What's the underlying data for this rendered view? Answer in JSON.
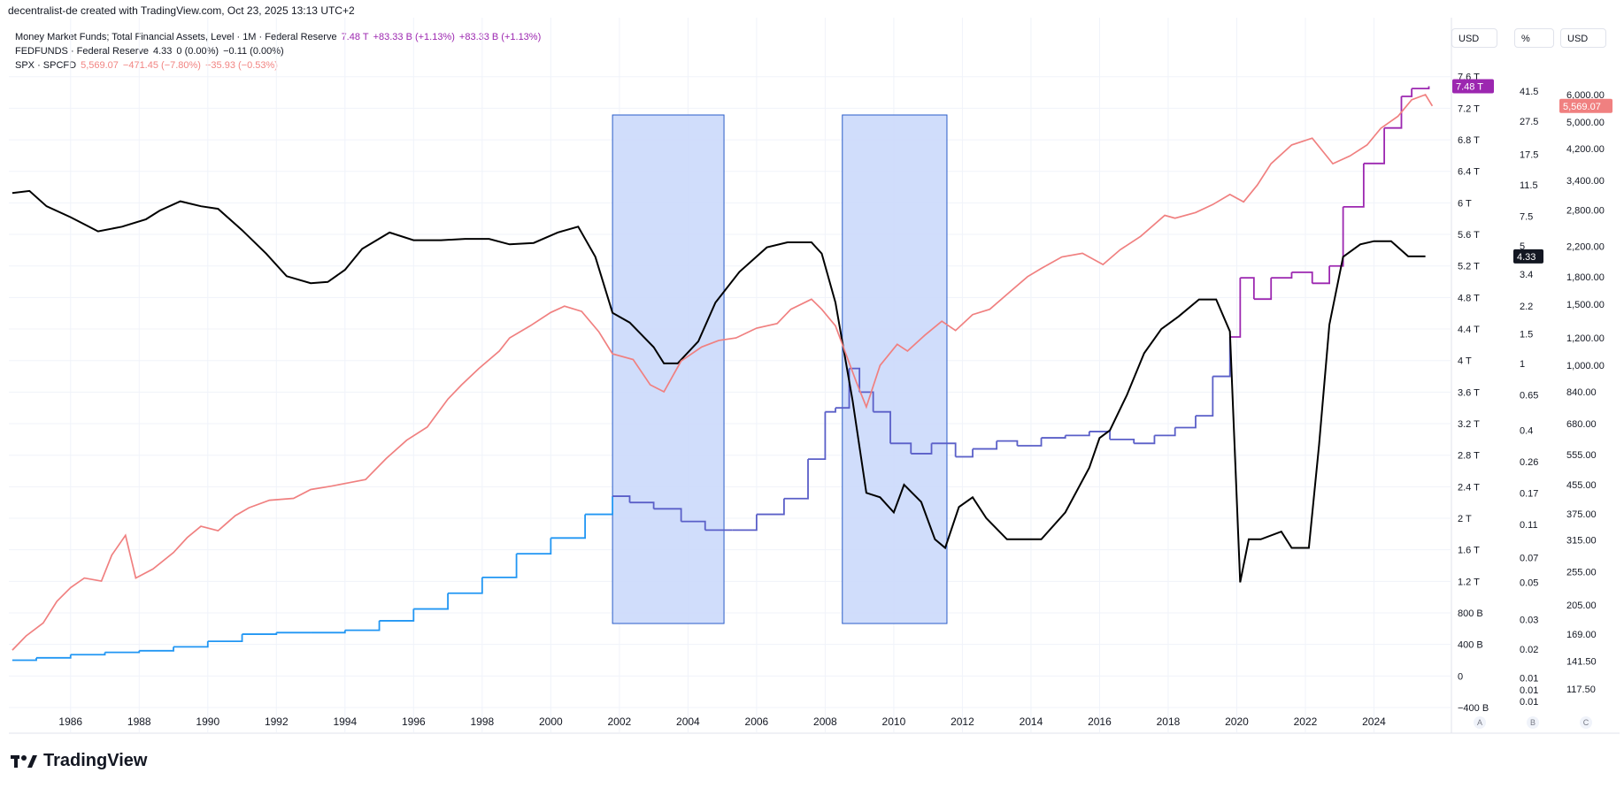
{
  "header": {
    "attribution": "decentralist-de created with TradingView.com, Oct 23, 2025 13:13 UTC+2"
  },
  "legend": [
    {
      "name": "Money Market Funds; Total Financial Assets, Level · 1M · Federal Reserve",
      "value": "7.48 T",
      "change": "+83.33 B (+1.13%)",
      "change2": "+83.33 B (+1.13%)",
      "color": "#9c27b0"
    },
    {
      "name": "FEDFUNDS · Federal Reserve",
      "value": "4.33",
      "change": "0 (0.00%)",
      "change2": "−0.11 (0.00%)",
      "color": "#131722"
    },
    {
      "name": "SPX · SPCFD",
      "value": "5,569.07",
      "change": "−471.45 (−7.80%)",
      "change2": "−35.93 (−0.53%)",
      "color": "#f28482"
    }
  ],
  "axis_headers": {
    "a": "USD",
    "b": "%",
    "c": "USD"
  },
  "axis_corner_labels": {
    "a": "A",
    "b": "B",
    "c": "C"
  },
  "brand": {
    "name": "TradingView",
    "logo": "tradingview-logo-icon"
  },
  "colors": {
    "mmf_early": "#2196f3",
    "mmf": "#5a5fc8",
    "mmf_late": "#9c27b0",
    "fedfunds": "#000000",
    "spx": "#f08080",
    "shade_fill": "#cbd9fb",
    "shade_stroke": "#2a5cc8"
  },
  "chart_data": {
    "type": "line",
    "x_range": [
      1984.2,
      2026.0
    ],
    "x_ticks": [
      1986,
      1988,
      1990,
      1992,
      1994,
      1996,
      1998,
      2000,
      2002,
      2004,
      2006,
      2008,
      2010,
      2012,
      2014,
      2016,
      2018,
      2020,
      2022,
      2024
    ],
    "grid": true,
    "axes": {
      "a": {
        "unit": "USD",
        "scale": "linear",
        "range": [
          -0.4,
          7.9
        ],
        "ticks": [
          "7.6 T",
          "7.2 T",
          "6.8 T",
          "6.4 T",
          "6 T",
          "5.6 T",
          "5.2 T",
          "4.8 T",
          "4.4 T",
          "4 T",
          "3.6 T",
          "3.2 T",
          "2.8 T",
          "2.4 T",
          "2 T",
          "1.6 T",
          "1.2 T",
          "800 B",
          "400 B",
          "0",
          "−400 B"
        ],
        "last_label": "7.48 T"
      },
      "b": {
        "unit": "%",
        "scale": "log",
        "ticks": [
          "41.5",
          "27.5",
          "17.5",
          "11.5",
          "7.5",
          "5",
          "3.4",
          "2.2",
          "1.5",
          "1",
          "0.65",
          "0.4",
          "0.26",
          "0.17",
          "0.11",
          "0.07",
          "0.05",
          "0.03",
          "0.02",
          "0.01",
          "0.01",
          "0.01"
        ],
        "last_label": "4.33"
      },
      "c": {
        "unit": "USD",
        "scale": "log",
        "ticks": [
          "6,000.00",
          "5,000.00",
          "4,200.00",
          "3,400.00",
          "2,800.00",
          "2,200.00",
          "1,800.00",
          "1,500.00",
          "1,200.00",
          "1,000.00",
          "840.00",
          "680.00",
          "555.00",
          "455.00",
          "375.00",
          "315.00",
          "255.00",
          "205.00",
          "169.00",
          "141.50",
          "117.50"
        ],
        "last_label": "5,569.07"
      }
    },
    "shaded_regions": [
      {
        "x": [
          2001.8,
          2005.05
        ]
      },
      {
        "x": [
          2008.5,
          2011.55
        ]
      }
    ],
    "series": [
      {
        "name": "Money Market Funds; Total Financial Assets, Level",
        "axis": "a",
        "step": true,
        "x": [
          1984.3,
          1985,
          1986,
          1987,
          1988,
          1989,
          1990,
          1991,
          1992,
          1993,
          1994,
          1995,
          1996,
          1997,
          1998,
          1999,
          2000,
          2001,
          2001.8,
          2002.3,
          2003,
          2003.8,
          2004.5,
          2005.3,
          2006,
          2006.8,
          2007.5,
          2008,
          2008.3,
          2008.7,
          2009,
          2009.4,
          2009.9,
          2010.5,
          2011.1,
          2011.8,
          2012.3,
          2013,
          2013.6,
          2014.3,
          2015,
          2015.7,
          2016.3,
          2017,
          2017.6,
          2018.2,
          2018.8,
          2019.3,
          2019.8,
          2020.1,
          2020.5,
          2021,
          2021.6,
          2022.2,
          2022.7,
          2023.1,
          2023.7,
          2024.3,
          2024.8,
          2025.1,
          2025.6
        ],
        "values": [
          0.2,
          0.23,
          0.27,
          0.3,
          0.32,
          0.37,
          0.44,
          0.53,
          0.55,
          0.55,
          0.58,
          0.7,
          0.85,
          1.05,
          1.25,
          1.55,
          1.75,
          2.05,
          2.28,
          2.2,
          2.12,
          1.96,
          1.85,
          1.85,
          2.05,
          2.25,
          2.75,
          3.35,
          3.4,
          3.9,
          3.6,
          3.35,
          2.95,
          2.82,
          2.95,
          2.78,
          2.88,
          2.98,
          2.92,
          3.02,
          3.05,
          3.1,
          3.0,
          2.95,
          3.05,
          3.15,
          3.3,
          3.8,
          4.3,
          5.05,
          4.78,
          5.05,
          5.12,
          4.98,
          5.2,
          5.95,
          6.5,
          6.95,
          7.35,
          7.45,
          7.48
        ]
      },
      {
        "name": "FEDFUNDS",
        "axis": "b",
        "x": [
          1984.3,
          1984.8,
          1985.3,
          1986,
          1986.8,
          1987.5,
          1988.2,
          1988.6,
          1989.2,
          1989.8,
          1990.3,
          1991,
          1991.7,
          1992.3,
          1993,
          1993.5,
          1994,
          1994.5,
          1995.3,
          1996,
          1996.8,
          1997.5,
          1998.2,
          1998.8,
          1999.5,
          2000.2,
          2000.8,
          2001.3,
          2001.8,
          2002.3,
          2003,
          2003.3,
          2003.7,
          2004.3,
          2004.8,
          2005.5,
          2006.3,
          2006.9,
          2007.6,
          2007.9,
          2008.3,
          2008.8,
          2009.2,
          2009.6,
          2010,
          2010.3,
          2010.8,
          2011.2,
          2011.5,
          2011.9,
          2012.3,
          2012.7,
          2013.3,
          2013.7,
          2014.3,
          2015,
          2015.7,
          2016,
          2016.3,
          2016.8,
          2017.3,
          2017.8,
          2018.3,
          2018.9,
          2019.4,
          2019.8,
          2020.1,
          2020.35,
          2020.7,
          2021.3,
          2021.6,
          2022.1,
          2022.4,
          2022.7,
          2023.1,
          2023.6,
          2024,
          2024.5,
          2025,
          2025.5
        ],
        "values": [
          10.3,
          10.6,
          8.6,
          7.4,
          6.1,
          6.5,
          7.2,
          8.1,
          9.2,
          8.6,
          8.3,
          6.2,
          4.5,
          3.3,
          3.0,
          3.05,
          3.6,
          4.8,
          6.0,
          5.4,
          5.4,
          5.5,
          5.5,
          5.1,
          5.2,
          6.0,
          6.5,
          4.3,
          2.0,
          1.75,
          1.25,
          1.0,
          1.0,
          1.35,
          2.3,
          3.5,
          4.9,
          5.25,
          5.25,
          4.5,
          2.3,
          0.6,
          0.17,
          0.16,
          0.13,
          0.19,
          0.15,
          0.09,
          0.08,
          0.14,
          0.16,
          0.12,
          0.09,
          0.09,
          0.09,
          0.13,
          0.24,
          0.36,
          0.4,
          0.65,
          1.15,
          1.6,
          1.9,
          2.4,
          2.4,
          1.55,
          0.05,
          0.09,
          0.09,
          0.1,
          0.08,
          0.08,
          0.33,
          1.7,
          4.3,
          5.1,
          5.33,
          5.33,
          4.33,
          4.33
        ]
      },
      {
        "name": "SPX",
        "axis": "c",
        "x": [
          1984.3,
          1984.7,
          1985.2,
          1985.6,
          1986,
          1986.4,
          1986.9,
          1987.2,
          1987.6,
          1987.9,
          1988.4,
          1989,
          1989.4,
          1989.8,
          1990.3,
          1990.8,
          1991.2,
          1991.8,
          1992.5,
          1993,
          1993.6,
          1994.1,
          1994.6,
          1995.2,
          1995.8,
          1996.4,
          1997,
          1997.4,
          1997.9,
          1998.5,
          1998.8,
          1999.4,
          2000,
          2000.4,
          2000.9,
          2001.4,
          2001.8,
          2002.4,
          2002.9,
          2003.3,
          2003.8,
          2004.4,
          2004.9,
          2005.4,
          2006,
          2006.6,
          2007,
          2007.6,
          2007.9,
          2008.3,
          2008.9,
          2009.2,
          2009.6,
          2010.1,
          2010.4,
          2010.9,
          2011.4,
          2011.8,
          2012.3,
          2012.8,
          2013.3,
          2013.9,
          2014.3,
          2014.9,
          2015.5,
          2016.1,
          2016.6,
          2017.2,
          2017.9,
          2018.2,
          2018.8,
          2019.3,
          2019.8,
          2020.2,
          2020.6,
          2021,
          2021.6,
          2022.2,
          2022.8,
          2023.3,
          2023.8,
          2024.2,
          2024.7,
          2025.1,
          2025.5,
          2025.7
        ],
        "values": [
          152,
          167,
          182,
          210,
          230,
          245,
          240,
          285,
          325,
          245,
          260,
          290,
          320,
          345,
          335,
          370,
          390,
          410,
          415,
          440,
          450,
          460,
          470,
          540,
          610,
          665,
          800,
          880,
          980,
          1100,
          1200,
          1300,
          1420,
          1480,
          1430,
          1250,
          1080,
          1040,
          880,
          840,
          1030,
          1130,
          1180,
          1200,
          1280,
          1320,
          1450,
          1550,
          1450,
          1300,
          900,
          760,
          1000,
          1150,
          1100,
          1220,
          1340,
          1260,
          1400,
          1450,
          1600,
          1800,
          1900,
          2050,
          2100,
          1950,
          2150,
          2350,
          2700,
          2650,
          2750,
          2900,
          3100,
          2950,
          3300,
          3800,
          4300,
          4500,
          3800,
          4000,
          4300,
          4800,
          5200,
          5800,
          6000,
          5569
        ]
      }
    ]
  }
}
